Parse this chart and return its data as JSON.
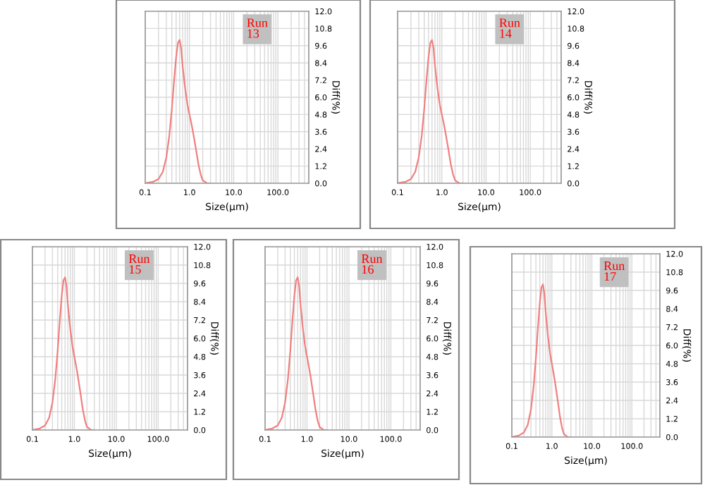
{
  "chart_data": [
    {
      "type": "line",
      "xlabel": "Size(μm)",
      "ylabel": "Diff(%)",
      "annotations": [
        "Run\n13"
      ],
      "log": "x",
      "grid": true,
      "xlim": [
        0.1,
        500
      ],
      "xticks": [
        {
          "value": 0.1,
          "label": "0.1"
        },
        {
          "value": 1,
          "label": "1.0"
        },
        {
          "value": 10,
          "label": "10.0"
        },
        {
          "value": 100,
          "label": "100.0"
        }
      ],
      "ylim": [
        0,
        12
      ],
      "yticks": [
        {
          "value": 0,
          "label": "0.0"
        },
        {
          "value": 1.2,
          "label": "1.2"
        },
        {
          "value": 2.4,
          "label": "2.4"
        },
        {
          "value": 3.6,
          "label": "3.6"
        },
        {
          "value": 4.8,
          "label": "4.8"
        },
        {
          "value": 6,
          "label": "6.0"
        },
        {
          "value": 7.2,
          "label": "7.2"
        },
        {
          "value": 8.4,
          "label": "8.4"
        },
        {
          "value": 9.6,
          "label": "9.6"
        },
        {
          "value": 10.8,
          "label": "10.8"
        },
        {
          "value": 12,
          "label": "12.0"
        }
      ],
      "x": [
        0.1,
        0.15,
        0.2,
        0.25,
        0.3,
        0.35,
        0.4,
        0.45,
        0.5,
        0.55,
        0.6,
        0.65,
        0.7,
        0.8,
        0.9,
        1.0,
        1.1,
        1.2,
        1.4,
        1.6,
        1.8,
        2.0,
        2.5,
        3
      ],
      "series": [
        {
          "color": "#f08080",
          "values": [
            0,
            0.1,
            0.3,
            0.8,
            1.8,
            3.3,
            5.2,
            7.2,
            8.8,
            9.8,
            10.0,
            9.4,
            8.2,
            6.6,
            5.5,
            4.8,
            4.2,
            3.6,
            2.4,
            1.3,
            0.6,
            0.2,
            0,
            0
          ]
        }
      ]
    },
    {
      "type": "line",
      "xlabel": "Size(μm)",
      "ylabel": "Diff(%)",
      "annotations": [
        "Run\n14"
      ],
      "log": "x",
      "grid": true,
      "xlim": [
        0.1,
        500
      ],
      "xticks": [
        {
          "value": 0.1,
          "label": "0.1"
        },
        {
          "value": 1,
          "label": "1.0"
        },
        {
          "value": 10,
          "label": "10.0"
        },
        {
          "value": 100,
          "label": "100.0"
        }
      ],
      "ylim": [
        0,
        12
      ],
      "yticks": [
        {
          "value": 0,
          "label": "0.0"
        },
        {
          "value": 1.2,
          "label": "1.2"
        },
        {
          "value": 2.4,
          "label": "2.4"
        },
        {
          "value": 3.6,
          "label": "3.6"
        },
        {
          "value": 4.8,
          "label": "4.8"
        },
        {
          "value": 6,
          "label": "6.0"
        },
        {
          "value": 7.2,
          "label": "7.2"
        },
        {
          "value": 8.4,
          "label": "8.4"
        },
        {
          "value": 9.6,
          "label": "9.6"
        },
        {
          "value": 10.8,
          "label": "10.8"
        },
        {
          "value": 12,
          "label": "12.0"
        }
      ],
      "x": [
        0.1,
        0.15,
        0.2,
        0.25,
        0.3,
        0.35,
        0.4,
        0.45,
        0.5,
        0.55,
        0.6,
        0.65,
        0.7,
        0.8,
        0.9,
        1.0,
        1.1,
        1.2,
        1.4,
        1.6,
        1.8,
        2.0,
        2.5,
        3
      ],
      "series": [
        {
          "color": "#f08080",
          "values": [
            0,
            0.1,
            0.3,
            0.8,
            1.8,
            3.3,
            5.2,
            7.2,
            8.8,
            9.8,
            10.0,
            9.4,
            8.2,
            6.6,
            5.5,
            4.8,
            4.2,
            3.6,
            2.4,
            1.3,
            0.6,
            0.2,
            0,
            0
          ]
        }
      ]
    },
    {
      "type": "line",
      "xlabel": "Size(μm)",
      "ylabel": "Diff(%)",
      "annotations": [
        "Run\n15"
      ],
      "log": "x",
      "grid": true,
      "xlim": [
        0.1,
        500
      ],
      "xticks": [
        {
          "value": 0.1,
          "label": "0.1"
        },
        {
          "value": 1,
          "label": "1.0"
        },
        {
          "value": 10,
          "label": "10.0"
        },
        {
          "value": 100,
          "label": "100.0"
        }
      ],
      "ylim": [
        0,
        12
      ],
      "yticks": [
        {
          "value": 0,
          "label": "0.0"
        },
        {
          "value": 1.2,
          "label": "1.2"
        },
        {
          "value": 2.4,
          "label": "2.4"
        },
        {
          "value": 3.6,
          "label": "3.6"
        },
        {
          "value": 4.8,
          "label": "4.8"
        },
        {
          "value": 6,
          "label": "6.0"
        },
        {
          "value": 7.2,
          "label": "7.2"
        },
        {
          "value": 8.4,
          "label": "8.4"
        },
        {
          "value": 9.6,
          "label": "9.6"
        },
        {
          "value": 10.8,
          "label": "10.8"
        },
        {
          "value": 12,
          "label": "12.0"
        }
      ],
      "x": [
        0.1,
        0.15,
        0.2,
        0.25,
        0.3,
        0.35,
        0.4,
        0.45,
        0.5,
        0.55,
        0.6,
        0.65,
        0.7,
        0.8,
        0.9,
        1.0,
        1.1,
        1.2,
        1.4,
        1.6,
        1.8,
        2.0,
        2.5,
        3
      ],
      "series": [
        {
          "color": "#f08080",
          "values": [
            0,
            0.1,
            0.3,
            0.8,
            1.8,
            3.3,
            5.2,
            7.2,
            8.8,
            9.8,
            10.0,
            9.4,
            8.2,
            6.6,
            5.5,
            4.8,
            4.2,
            3.6,
            2.4,
            1.3,
            0.6,
            0.2,
            0,
            0
          ]
        }
      ]
    },
    {
      "type": "line",
      "xlabel": "Size(μm)",
      "ylabel": "Diff(%)",
      "annotations": [
        "Run\n16"
      ],
      "log": "x",
      "grid": true,
      "xlim": [
        0.1,
        500
      ],
      "xticks": [
        {
          "value": 0.1,
          "label": "0.1"
        },
        {
          "value": 1,
          "label": "1.0"
        },
        {
          "value": 10,
          "label": "10.0"
        },
        {
          "value": 100,
          "label": "100.0"
        }
      ],
      "ylim": [
        0,
        12
      ],
      "yticks": [
        {
          "value": 0,
          "label": "0.0"
        },
        {
          "value": 1.2,
          "label": "1.2"
        },
        {
          "value": 2.4,
          "label": "2.4"
        },
        {
          "value": 3.6,
          "label": "3.6"
        },
        {
          "value": 4.8,
          "label": "4.8"
        },
        {
          "value": 6,
          "label": "6.0"
        },
        {
          "value": 7.2,
          "label": "7.2"
        },
        {
          "value": 8.4,
          "label": "8.4"
        },
        {
          "value": 9.6,
          "label": "9.6"
        },
        {
          "value": 10.8,
          "label": "10.8"
        },
        {
          "value": 12,
          "label": "12.0"
        }
      ],
      "x": [
        0.1,
        0.15,
        0.2,
        0.25,
        0.3,
        0.35,
        0.4,
        0.45,
        0.5,
        0.55,
        0.6,
        0.65,
        0.7,
        0.8,
        0.9,
        1.0,
        1.1,
        1.2,
        1.4,
        1.6,
        1.8,
        2.0,
        2.5,
        3
      ],
      "series": [
        {
          "color": "#f08080",
          "values": [
            0,
            0.1,
            0.3,
            0.8,
            1.8,
            3.3,
            5.2,
            7.2,
            8.8,
            9.8,
            10.0,
            9.4,
            8.2,
            6.6,
            5.5,
            4.8,
            4.2,
            3.6,
            2.4,
            1.3,
            0.6,
            0.2,
            0,
            0
          ]
        }
      ]
    },
    {
      "type": "line",
      "xlabel": "Size(μm)",
      "ylabel": "Diff(%)",
      "annotations": [
        "Run\n17"
      ],
      "log": "x",
      "grid": true,
      "xlim": [
        0.1,
        500
      ],
      "xticks": [
        {
          "value": 0.1,
          "label": "0.1"
        },
        {
          "value": 1,
          "label": "1.0"
        },
        {
          "value": 10,
          "label": "10.0"
        },
        {
          "value": 100,
          "label": "100.0"
        }
      ],
      "ylim": [
        0,
        12
      ],
      "yticks": [
        {
          "value": 0,
          "label": "0.0"
        },
        {
          "value": 1.2,
          "label": "1.2"
        },
        {
          "value": 2.4,
          "label": "2.4"
        },
        {
          "value": 3.6,
          "label": "3.6"
        },
        {
          "value": 4.8,
          "label": "4.8"
        },
        {
          "value": 6,
          "label": "6.0"
        },
        {
          "value": 7.2,
          "label": "7.2"
        },
        {
          "value": 8.4,
          "label": "8.4"
        },
        {
          "value": 9.6,
          "label": "9.6"
        },
        {
          "value": 10.8,
          "label": "10.8"
        },
        {
          "value": 12,
          "label": "12.0"
        }
      ],
      "x": [
        0.1,
        0.15,
        0.2,
        0.25,
        0.3,
        0.35,
        0.4,
        0.45,
        0.5,
        0.55,
        0.6,
        0.65,
        0.7,
        0.8,
        0.9,
        1.0,
        1.1,
        1.2,
        1.4,
        1.6,
        1.8,
        2.0,
        2.5,
        3
      ],
      "series": [
        {
          "color": "#f08080",
          "values": [
            0,
            0.1,
            0.3,
            0.8,
            1.8,
            3.3,
            5.2,
            7.2,
            8.8,
            9.8,
            10.0,
            9.4,
            8.2,
            6.6,
            5.5,
            4.8,
            4.2,
            3.6,
            2.4,
            1.3,
            0.6,
            0.2,
            0,
            0
          ]
        }
      ]
    }
  ]
}
